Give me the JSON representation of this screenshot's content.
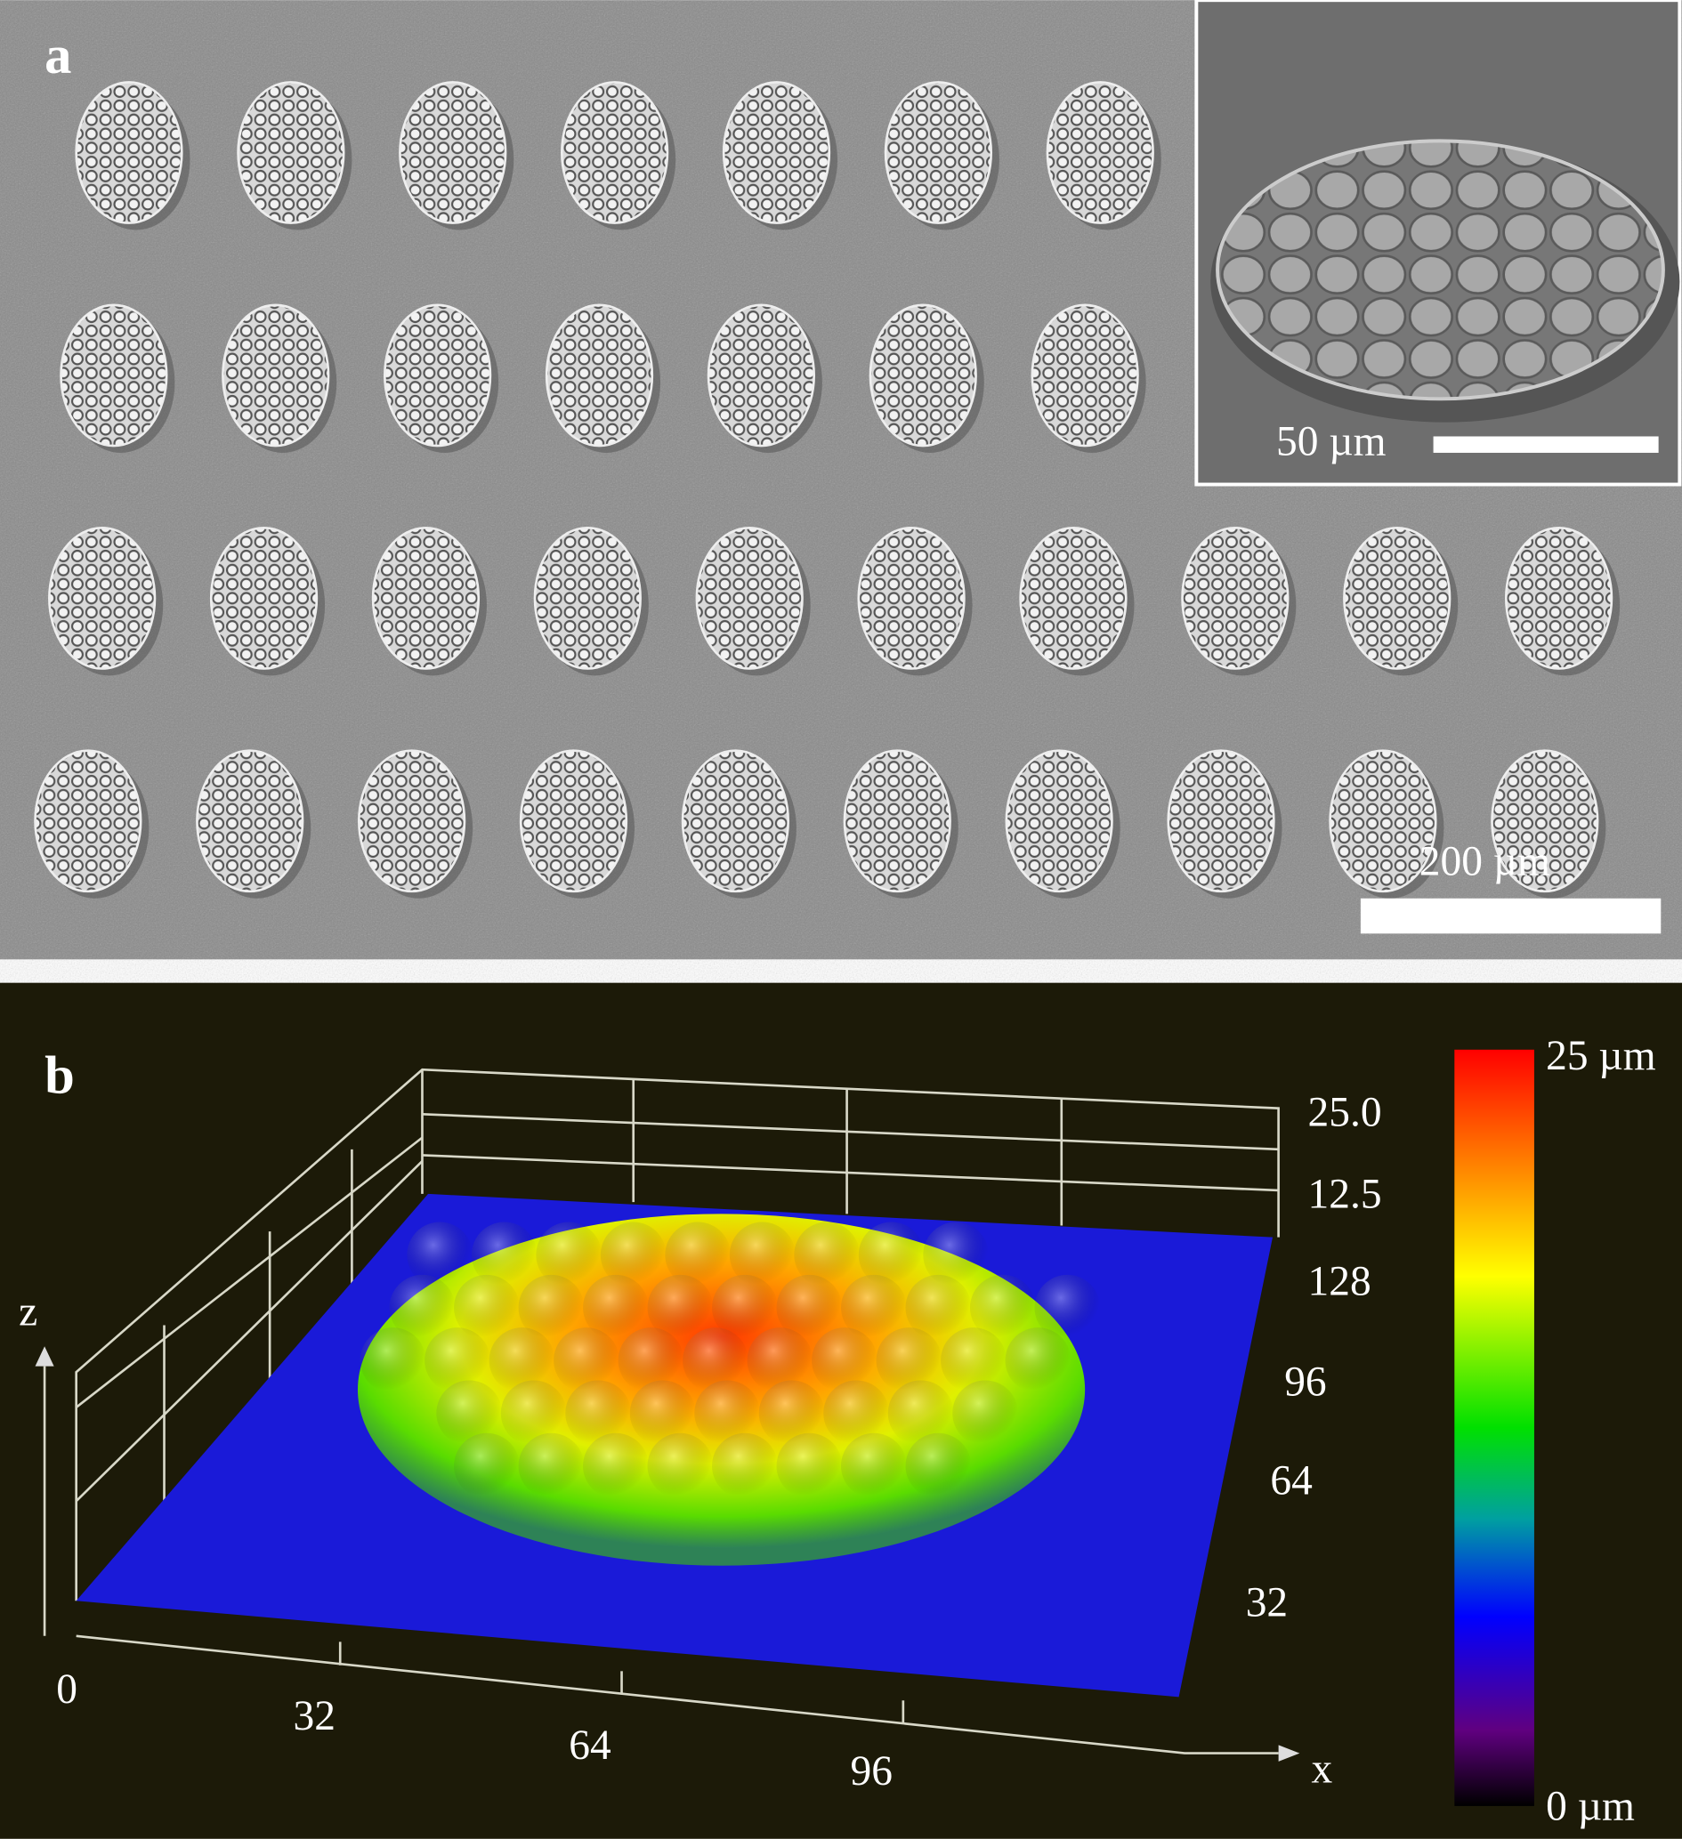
{
  "panel_a": {
    "label": "a",
    "inset_scale_label": "50 µm",
    "scale_label": "200 µm"
  },
  "panel_b": {
    "label": "b",
    "z_ticks": [
      "25.0",
      "12.5"
    ],
    "y_ticks": [
      "128",
      "96",
      "64",
      "32"
    ],
    "x_ticks": [
      "0",
      "32",
      "64",
      "96"
    ],
    "z_label": "z",
    "x_label": "x",
    "colorbar_max": "25 µm",
    "colorbar_min": "0 µm"
  }
}
